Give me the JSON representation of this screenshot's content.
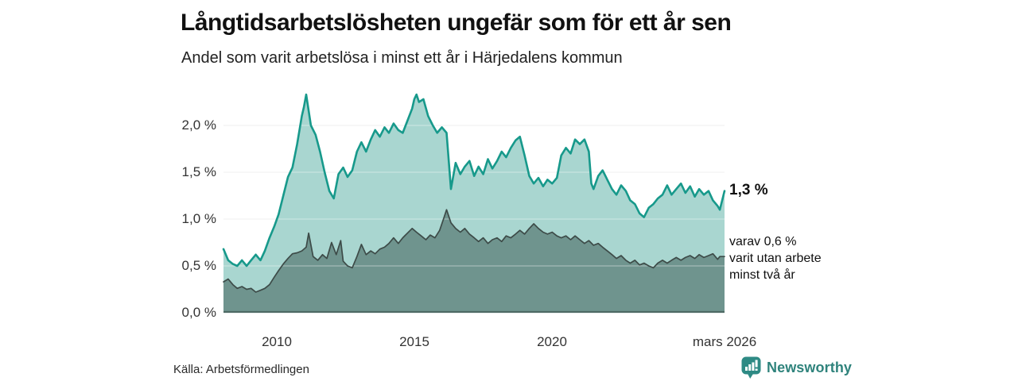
{
  "colors": {
    "accent_teal": "#17998b",
    "light_fill": "#a9d6d0",
    "dark_fill": "#6f948e",
    "dark_stroke": "#3d4b48",
    "grid": "#e2e2e2",
    "grid_overlay": "rgba(255,255,255,0.45)",
    "baseline": "#4e6a64",
    "brand_teal": "#2f837c",
    "brand_bubble": "#2e8a84"
  },
  "footer": {
    "source": "Källa: Arbetsförmedlingen",
    "brand": "Newsworthy"
  },
  "chart_data": {
    "type": "area",
    "title": "Långtidsarbetslösheten ungefär som för ett år sen",
    "subtitle": "Andel som varit arbetslösa i minst ett år i Härjedalens kommun",
    "x_domain": [
      2008.08,
      2026.25
    ],
    "ylim": [
      0,
      2.45
    ],
    "grid": "horizontal",
    "legend": "none",
    "y_ticks": [
      {
        "label": "2,0 %",
        "value": 2.0
      },
      {
        "label": "1,5 %",
        "value": 1.5
      },
      {
        "label": "1,0 %",
        "value": 1.0
      },
      {
        "label": "0,5 %",
        "value": 0.5
      },
      {
        "label": "0,0 %",
        "value": 0.0
      }
    ],
    "x_ticks": [
      {
        "label": "2010",
        "value": 2010
      },
      {
        "label": "2015",
        "value": 2015
      },
      {
        "label": "2020",
        "value": 2020
      },
      {
        "label": "mars 2026",
        "value": 2026.25
      }
    ],
    "annotations": {
      "end_value": "1,3 %",
      "note_lines": [
        "varav 0,6 %",
        "varit utan arbete",
        "minst två år"
      ]
    },
    "series": [
      {
        "name": "Andel arbetslösa minst ett år",
        "end_value": 1.3,
        "stroke": "#17998b",
        "fill": "#a9d6d0",
        "points": [
          [
            2008.08,
            0.68
          ],
          [
            2008.25,
            0.56
          ],
          [
            2008.42,
            0.52
          ],
          [
            2008.58,
            0.5
          ],
          [
            2008.75,
            0.56
          ],
          [
            2008.92,
            0.5
          ],
          [
            2009.08,
            0.56
          ],
          [
            2009.25,
            0.62
          ],
          [
            2009.42,
            0.56
          ],
          [
            2009.58,
            0.66
          ],
          [
            2009.75,
            0.8
          ],
          [
            2009.92,
            0.92
          ],
          [
            2010.08,
            1.05
          ],
          [
            2010.25,
            1.25
          ],
          [
            2010.42,
            1.45
          ],
          [
            2010.58,
            1.55
          ],
          [
            2010.75,
            1.8
          ],
          [
            2010.92,
            2.1
          ],
          [
            2011.0,
            2.2
          ],
          [
            2011.08,
            2.33
          ],
          [
            2011.25,
            2.0
          ],
          [
            2011.42,
            1.9
          ],
          [
            2011.58,
            1.72
          ],
          [
            2011.75,
            1.5
          ],
          [
            2011.92,
            1.3
          ],
          [
            2012.08,
            1.22
          ],
          [
            2012.25,
            1.48
          ],
          [
            2012.42,
            1.55
          ],
          [
            2012.58,
            1.45
          ],
          [
            2012.75,
            1.52
          ],
          [
            2012.92,
            1.72
          ],
          [
            2013.08,
            1.82
          ],
          [
            2013.25,
            1.72
          ],
          [
            2013.42,
            1.85
          ],
          [
            2013.58,
            1.95
          ],
          [
            2013.75,
            1.88
          ],
          [
            2013.92,
            1.98
          ],
          [
            2014.08,
            1.92
          ],
          [
            2014.25,
            2.02
          ],
          [
            2014.42,
            1.95
          ],
          [
            2014.58,
            1.92
          ],
          [
            2014.75,
            2.05
          ],
          [
            2014.92,
            2.18
          ],
          [
            2015.0,
            2.28
          ],
          [
            2015.08,
            2.33
          ],
          [
            2015.17,
            2.25
          ],
          [
            2015.33,
            2.28
          ],
          [
            2015.5,
            2.1
          ],
          [
            2015.67,
            2.0
          ],
          [
            2015.83,
            1.92
          ],
          [
            2016.0,
            1.98
          ],
          [
            2016.17,
            1.92
          ],
          [
            2016.33,
            1.32
          ],
          [
            2016.5,
            1.6
          ],
          [
            2016.67,
            1.48
          ],
          [
            2016.83,
            1.56
          ],
          [
            2017.0,
            1.62
          ],
          [
            2017.17,
            1.46
          ],
          [
            2017.33,
            1.56
          ],
          [
            2017.5,
            1.48
          ],
          [
            2017.67,
            1.64
          ],
          [
            2017.83,
            1.54
          ],
          [
            2018.0,
            1.62
          ],
          [
            2018.17,
            1.72
          ],
          [
            2018.33,
            1.66
          ],
          [
            2018.5,
            1.76
          ],
          [
            2018.67,
            1.84
          ],
          [
            2018.83,
            1.88
          ],
          [
            2019.0,
            1.68
          ],
          [
            2019.17,
            1.46
          ],
          [
            2019.33,
            1.38
          ],
          [
            2019.5,
            1.44
          ],
          [
            2019.67,
            1.35
          ],
          [
            2019.83,
            1.42
          ],
          [
            2020.0,
            1.38
          ],
          [
            2020.17,
            1.44
          ],
          [
            2020.33,
            1.68
          ],
          [
            2020.5,
            1.76
          ],
          [
            2020.67,
            1.7
          ],
          [
            2020.83,
            1.85
          ],
          [
            2021.0,
            1.8
          ],
          [
            2021.17,
            1.85
          ],
          [
            2021.33,
            1.72
          ],
          [
            2021.42,
            1.38
          ],
          [
            2021.5,
            1.32
          ],
          [
            2021.67,
            1.46
          ],
          [
            2021.83,
            1.52
          ],
          [
            2022.0,
            1.42
          ],
          [
            2022.17,
            1.32
          ],
          [
            2022.33,
            1.26
          ],
          [
            2022.5,
            1.36
          ],
          [
            2022.67,
            1.3
          ],
          [
            2022.83,
            1.2
          ],
          [
            2023.0,
            1.16
          ],
          [
            2023.17,
            1.06
          ],
          [
            2023.33,
            1.02
          ],
          [
            2023.5,
            1.12
          ],
          [
            2023.67,
            1.16
          ],
          [
            2023.83,
            1.22
          ],
          [
            2024.0,
            1.26
          ],
          [
            2024.17,
            1.36
          ],
          [
            2024.33,
            1.26
          ],
          [
            2024.5,
            1.32
          ],
          [
            2024.67,
            1.38
          ],
          [
            2024.83,
            1.28
          ],
          [
            2025.0,
            1.35
          ],
          [
            2025.17,
            1.24
          ],
          [
            2025.33,
            1.32
          ],
          [
            2025.5,
            1.26
          ],
          [
            2025.67,
            1.3
          ],
          [
            2025.83,
            1.2
          ],
          [
            2026.0,
            1.14
          ],
          [
            2026.08,
            1.1
          ],
          [
            2026.25,
            1.3
          ]
        ]
      },
      {
        "name": "varav utan arbete minst två år",
        "end_value": 0.6,
        "stroke": "#3d4b48",
        "fill": "#6f948e",
        "points": [
          [
            2008.08,
            0.33
          ],
          [
            2008.25,
            0.36
          ],
          [
            2008.42,
            0.3
          ],
          [
            2008.58,
            0.26
          ],
          [
            2008.75,
            0.28
          ],
          [
            2008.92,
            0.25
          ],
          [
            2009.08,
            0.26
          ],
          [
            2009.25,
            0.22
          ],
          [
            2009.42,
            0.24
          ],
          [
            2009.58,
            0.26
          ],
          [
            2009.75,
            0.3
          ],
          [
            2009.92,
            0.38
          ],
          [
            2010.08,
            0.45
          ],
          [
            2010.25,
            0.52
          ],
          [
            2010.42,
            0.58
          ],
          [
            2010.58,
            0.63
          ],
          [
            2010.75,
            0.64
          ],
          [
            2010.92,
            0.66
          ],
          [
            2011.08,
            0.7
          ],
          [
            2011.17,
            0.85
          ],
          [
            2011.33,
            0.6
          ],
          [
            2011.5,
            0.56
          ],
          [
            2011.67,
            0.62
          ],
          [
            2011.83,
            0.58
          ],
          [
            2012.0,
            0.75
          ],
          [
            2012.17,
            0.62
          ],
          [
            2012.33,
            0.77
          ],
          [
            2012.42,
            0.55
          ],
          [
            2012.58,
            0.5
          ],
          [
            2012.75,
            0.48
          ],
          [
            2012.92,
            0.6
          ],
          [
            2013.08,
            0.73
          ],
          [
            2013.25,
            0.62
          ],
          [
            2013.42,
            0.66
          ],
          [
            2013.58,
            0.63
          ],
          [
            2013.75,
            0.68
          ],
          [
            2013.92,
            0.7
          ],
          [
            2014.08,
            0.74
          ],
          [
            2014.25,
            0.8
          ],
          [
            2014.42,
            0.74
          ],
          [
            2014.58,
            0.8
          ],
          [
            2014.75,
            0.85
          ],
          [
            2014.92,
            0.9
          ],
          [
            2015.08,
            0.86
          ],
          [
            2015.25,
            0.82
          ],
          [
            2015.42,
            0.78
          ],
          [
            2015.58,
            0.83
          ],
          [
            2015.75,
            0.8
          ],
          [
            2015.92,
            0.88
          ],
          [
            2016.08,
            1.02
          ],
          [
            2016.17,
            1.1
          ],
          [
            2016.33,
            0.96
          ],
          [
            2016.5,
            0.9
          ],
          [
            2016.67,
            0.86
          ],
          [
            2016.83,
            0.9
          ],
          [
            2017.0,
            0.84
          ],
          [
            2017.17,
            0.8
          ],
          [
            2017.33,
            0.76
          ],
          [
            2017.5,
            0.8
          ],
          [
            2017.67,
            0.74
          ],
          [
            2017.83,
            0.78
          ],
          [
            2018.0,
            0.8
          ],
          [
            2018.17,
            0.76
          ],
          [
            2018.33,
            0.82
          ],
          [
            2018.5,
            0.8
          ],
          [
            2018.67,
            0.84
          ],
          [
            2018.83,
            0.88
          ],
          [
            2019.0,
            0.84
          ],
          [
            2019.17,
            0.9
          ],
          [
            2019.33,
            0.95
          ],
          [
            2019.5,
            0.9
          ],
          [
            2019.67,
            0.86
          ],
          [
            2019.83,
            0.84
          ],
          [
            2020.0,
            0.86
          ],
          [
            2020.17,
            0.82
          ],
          [
            2020.33,
            0.8
          ],
          [
            2020.5,
            0.82
          ],
          [
            2020.67,
            0.78
          ],
          [
            2020.83,
            0.82
          ],
          [
            2021.0,
            0.78
          ],
          [
            2021.17,
            0.74
          ],
          [
            2021.33,
            0.77
          ],
          [
            2021.5,
            0.72
          ],
          [
            2021.67,
            0.74
          ],
          [
            2021.83,
            0.7
          ],
          [
            2022.0,
            0.66
          ],
          [
            2022.17,
            0.62
          ],
          [
            2022.33,
            0.58
          ],
          [
            2022.5,
            0.61
          ],
          [
            2022.67,
            0.56
          ],
          [
            2022.83,
            0.53
          ],
          [
            2023.0,
            0.56
          ],
          [
            2023.17,
            0.51
          ],
          [
            2023.33,
            0.53
          ],
          [
            2023.5,
            0.5
          ],
          [
            2023.67,
            0.48
          ],
          [
            2023.83,
            0.53
          ],
          [
            2024.0,
            0.56
          ],
          [
            2024.17,
            0.53
          ],
          [
            2024.33,
            0.56
          ],
          [
            2024.5,
            0.59
          ],
          [
            2024.67,
            0.56
          ],
          [
            2024.83,
            0.59
          ],
          [
            2025.0,
            0.61
          ],
          [
            2025.17,
            0.58
          ],
          [
            2025.33,
            0.62
          ],
          [
            2025.5,
            0.59
          ],
          [
            2025.67,
            0.61
          ],
          [
            2025.83,
            0.63
          ],
          [
            2026.0,
            0.57
          ],
          [
            2026.08,
            0.6
          ],
          [
            2026.25,
            0.6
          ]
        ]
      }
    ]
  }
}
